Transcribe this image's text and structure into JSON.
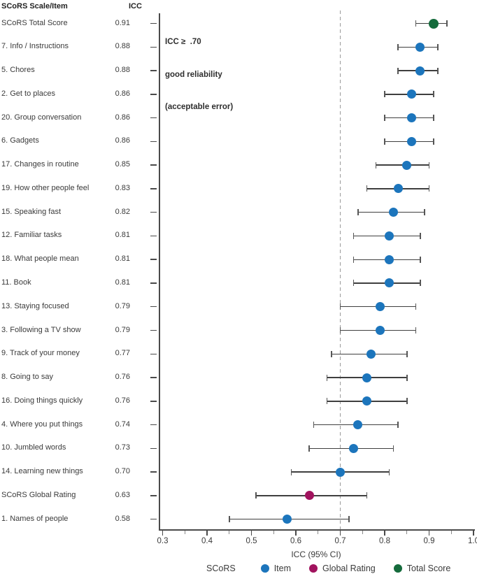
{
  "colors": {
    "item_blue": "#1c75bc",
    "global_magenta": "#a1135e",
    "total_green": "#156b3c",
    "axis": "#4a4a4a",
    "dash_gray": "#9a9a9a"
  },
  "chart_data": {
    "type": "scatter",
    "subtype": "forest-plot",
    "column_headers": {
      "scale_item": "SCoRS Scale/Item",
      "icc": "ICC"
    },
    "xlabel": "ICC (95% CI)",
    "xlim": [
      0.3,
      1.0
    ],
    "x_major_ticks": [
      0.3,
      0.4,
      0.5,
      0.6,
      0.7,
      0.8,
      0.9,
      1.0
    ],
    "x_major_tick_labels": [
      "0.3",
      "0.4",
      "0.5",
      "0.6",
      "0.7",
      "0.8",
      "0.9",
      "1.0"
    ],
    "x_minor_ticks": [
      0.35,
      0.45,
      0.55,
      0.65,
      0.75,
      0.85,
      0.95
    ],
    "reference_line": {
      "x": 0.7,
      "style": "dashed"
    },
    "grid": false,
    "annotation": {
      "lines": [
        "ICC ≥  .70",
        "good reliability",
        "(acceptable error)"
      ]
    },
    "legend": {
      "position": "bottom",
      "title": "SCoRS",
      "entries": [
        {
          "label": "Item",
          "group": "item"
        },
        {
          "label": "Global Rating",
          "group": "global"
        },
        {
          "label": "Total Score",
          "group": "total"
        }
      ]
    },
    "rows": [
      {
        "label": "SCoRS Total Score",
        "icc": "0.91",
        "value": 0.91,
        "ci_low": 0.87,
        "ci_high": 0.94,
        "group": "total"
      },
      {
        "label": "7. Info / Instructions",
        "icc": "0.88",
        "value": 0.88,
        "ci_low": 0.83,
        "ci_high": 0.92,
        "group": "item"
      },
      {
        "label": "5. Chores",
        "icc": "0.88",
        "value": 0.88,
        "ci_low": 0.83,
        "ci_high": 0.92,
        "group": "item"
      },
      {
        "label": "2. Get to places",
        "icc": "0.86",
        "value": 0.86,
        "ci_low": 0.8,
        "ci_high": 0.91,
        "group": "item"
      },
      {
        "label": "20. Group conversation",
        "icc": "0.86",
        "value": 0.86,
        "ci_low": 0.8,
        "ci_high": 0.91,
        "group": "item"
      },
      {
        "label": "6. Gadgets",
        "icc": "0.86",
        "value": 0.86,
        "ci_low": 0.8,
        "ci_high": 0.91,
        "group": "item"
      },
      {
        "label": "17. Changes in routine",
        "icc": "0.85",
        "value": 0.85,
        "ci_low": 0.78,
        "ci_high": 0.9,
        "group": "item"
      },
      {
        "label": "19. How other people feel",
        "icc": "0.83",
        "value": 0.83,
        "ci_low": 0.76,
        "ci_high": 0.9,
        "group": "item"
      },
      {
        "label": "15. Speaking fast",
        "icc": "0.82",
        "value": 0.82,
        "ci_low": 0.74,
        "ci_high": 0.89,
        "group": "item"
      },
      {
        "label": "12. Familiar tasks",
        "icc": "0.81",
        "value": 0.81,
        "ci_low": 0.73,
        "ci_high": 0.88,
        "group": "item"
      },
      {
        "label": "18. What people mean",
        "icc": "0.81",
        "value": 0.81,
        "ci_low": 0.73,
        "ci_high": 0.88,
        "group": "item"
      },
      {
        "label": "11. Book",
        "icc": "0.81",
        "value": 0.81,
        "ci_low": 0.73,
        "ci_high": 0.88,
        "group": "item"
      },
      {
        "label": "13. Staying focused",
        "icc": "0.79",
        "value": 0.79,
        "ci_low": 0.7,
        "ci_high": 0.87,
        "group": "item"
      },
      {
        "label": "3. Following a TV show",
        "icc": "0.79",
        "value": 0.79,
        "ci_low": 0.7,
        "ci_high": 0.87,
        "group": "item"
      },
      {
        "label": "9. Track of your money",
        "icc": "0.77",
        "value": 0.77,
        "ci_low": 0.68,
        "ci_high": 0.85,
        "group": "item"
      },
      {
        "label": "8. Going to say",
        "icc": "0.76",
        "value": 0.76,
        "ci_low": 0.67,
        "ci_high": 0.85,
        "group": "item"
      },
      {
        "label": "16. Doing things quickly",
        "icc": "0.76",
        "value": 0.76,
        "ci_low": 0.67,
        "ci_high": 0.85,
        "group": "item"
      },
      {
        "label": "4. Where you put things",
        "icc": "0.74",
        "value": 0.74,
        "ci_low": 0.64,
        "ci_high": 0.83,
        "group": "item"
      },
      {
        "label": "10. Jumbled words",
        "icc": "0.73",
        "value": 0.73,
        "ci_low": 0.63,
        "ci_high": 0.82,
        "group": "item"
      },
      {
        "label": "14. Learning new things",
        "icc": "0.70",
        "value": 0.7,
        "ci_low": 0.59,
        "ci_high": 0.81,
        "group": "item"
      },
      {
        "label": "SCoRS Global Rating",
        "icc": "0.63",
        "value": 0.63,
        "ci_low": 0.51,
        "ci_high": 0.76,
        "group": "global"
      },
      {
        "label": "1. Names of people",
        "icc": "0.58",
        "value": 0.58,
        "ci_low": 0.45,
        "ci_high": 0.72,
        "group": "item"
      }
    ]
  }
}
